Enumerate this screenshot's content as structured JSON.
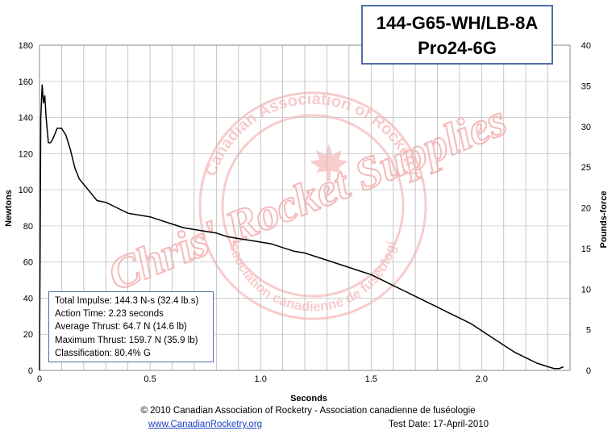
{
  "chart_data": {
    "type": "line",
    "title": [
      "144-G65-WH/LB-8A",
      "Pro24-6G"
    ],
    "xlabel": "Seconds",
    "ylabel": "Newtons",
    "y2label": "Pounds-force",
    "xlim": [
      0,
      2.4
    ],
    "ylim": [
      0,
      180
    ],
    "y2lim": [
      0,
      40
    ],
    "x_ticks": [
      "0",
      "0.5",
      "1.0",
      "1.5",
      "2.0"
    ],
    "x_tick_values": [
      0,
      0.5,
      1.0,
      1.5,
      2.0
    ],
    "y_ticks": [
      0,
      20,
      40,
      60,
      80,
      100,
      120,
      140,
      160,
      180
    ],
    "y2_ticks": [
      0,
      5,
      10,
      15,
      20,
      25,
      30,
      35,
      40
    ],
    "grid": true,
    "series": [
      {
        "color": "#000000",
        "x": [
          0,
          0.006,
          0.012,
          0.018,
          0.024,
          0.03,
          0.04,
          0.05,
          0.06,
          0.08,
          0.1,
          0.12,
          0.14,
          0.16,
          0.18,
          0.2,
          0.24,
          0.26,
          0.3,
          0.35,
          0.4,
          0.45,
          0.5,
          0.55,
          0.6,
          0.65,
          0.7,
          0.75,
          0.8,
          0.85,
          0.9,
          0.95,
          1.0,
          1.05,
          1.1,
          1.15,
          1.2,
          1.25,
          1.3,
          1.35,
          1.4,
          1.45,
          1.5,
          1.55,
          1.6,
          1.65,
          1.7,
          1.75,
          1.8,
          1.85,
          1.9,
          1.95,
          2.0,
          2.05,
          2.1,
          2.15,
          2.2,
          2.25,
          2.3,
          2.33,
          2.35,
          2.37
        ],
        "y": [
          0,
          140,
          158,
          148,
          152,
          140,
          126,
          126,
          128,
          134,
          134,
          130,
          122,
          112,
          106,
          103,
          97,
          94,
          93,
          90,
          87,
          86,
          85,
          83,
          81,
          79,
          78,
          77,
          76,
          74,
          73,
          72,
          71,
          70,
          68,
          66,
          65,
          63,
          61,
          59,
          57,
          55,
          53,
          50,
          47,
          44,
          41,
          38,
          35,
          32,
          29,
          26,
          22,
          18,
          14,
          10,
          7,
          4,
          2,
          1,
          1,
          2
        ]
      }
    ]
  },
  "title_box": {
    "line1": "144-G65-WH/LB-8A",
    "line2": "Pro24-6G"
  },
  "stats": {
    "total_impulse": "Total Impulse: 144.3 N-s (32.4 lb.s)",
    "action_time": "Action Time: 2.23 seconds",
    "average_thrust": "Average Thrust: 64.7 N (14.6 lb)",
    "maximum_thrust": "Maximum Thrust: 159.7 N (35.9 lb)",
    "classification": "Classification: 80.4% G"
  },
  "watermark": {
    "ring_top": "Canadian Association of Rocketry",
    "ring_bottom": "Association canadienne de fuséologie",
    "slogan": "Chris' Rocket Supplies",
    "color": "#f4a3a3"
  },
  "footer": {
    "copyright": "© 2010 Canadian Association of Rocketry - Association canadienne de fuséologie",
    "link": "www.CanadianRocketry.org",
    "test_date": "Test  Date: 17-April-2010"
  }
}
